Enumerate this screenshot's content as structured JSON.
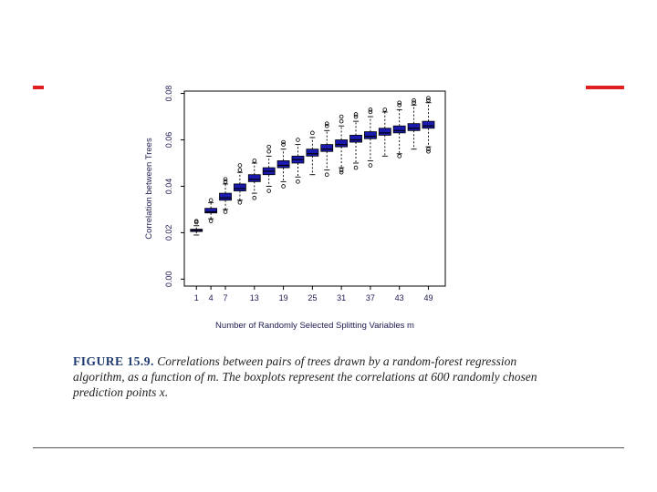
{
  "accent_color": "#e02020",
  "box_color": "#1a1ab0",
  "caption": {
    "figure_label": "FIGURE 15.9.",
    "text": "Correlations between pairs of trees drawn by a random-forest regression algorithm, as a function of m. The boxplots represent the correlations at 600 randomly chosen prediction points x."
  },
  "chart_data": {
    "type": "boxplot",
    "xlabel": "Number of Randomly Selected Splitting Variables m",
    "ylabel": "Correlation between Trees",
    "x_tick_labels": [
      "1",
      "4",
      "7",
      "13",
      "19",
      "25",
      "31",
      "37",
      "43",
      "49"
    ],
    "y_tick_labels": [
      "0.00",
      "0.02",
      "0.04",
      "0.06",
      "0.08"
    ],
    "ylim": [
      -0.003,
      0.081
    ],
    "grid": false,
    "boxes": [
      {
        "m": 1,
        "q1": 0.0205,
        "median": 0.021,
        "q3": 0.0215,
        "whisker_low": 0.019,
        "whisker_high": 0.023,
        "outliers": [
          0.0245,
          0.025
        ]
      },
      {
        "m": 4,
        "q1": 0.0285,
        "median": 0.029,
        "q3": 0.0305,
        "whisker_low": 0.026,
        "whisker_high": 0.033,
        "outliers": [
          0.025,
          0.034
        ]
      },
      {
        "m": 7,
        "q1": 0.034,
        "median": 0.035,
        "q3": 0.037,
        "whisker_low": 0.03,
        "whisker_high": 0.041,
        "outliers": [
          0.029,
          0.042,
          0.043
        ]
      },
      {
        "m": 10,
        "q1": 0.038,
        "median": 0.039,
        "q3": 0.041,
        "whisker_low": 0.034,
        "whisker_high": 0.046,
        "outliers": [
          0.033,
          0.047,
          0.049
        ]
      },
      {
        "m": 13,
        "q1": 0.042,
        "median": 0.043,
        "q3": 0.045,
        "whisker_low": 0.037,
        "whisker_high": 0.05,
        "outliers": [
          0.035,
          0.051
        ]
      },
      {
        "m": 16,
        "q1": 0.045,
        "median": 0.0465,
        "q3": 0.048,
        "whisker_low": 0.04,
        "whisker_high": 0.053,
        "outliers": [
          0.038,
          0.055,
          0.057
        ]
      },
      {
        "m": 19,
        "q1": 0.048,
        "median": 0.049,
        "q3": 0.051,
        "whisker_low": 0.042,
        "whisker_high": 0.056,
        "outliers": [
          0.04,
          0.058,
          0.059
        ]
      },
      {
        "m": 22,
        "q1": 0.05,
        "median": 0.0515,
        "q3": 0.053,
        "whisker_low": 0.044,
        "whisker_high": 0.058,
        "outliers": [
          0.042,
          0.06
        ]
      },
      {
        "m": 25,
        "q1": 0.053,
        "median": 0.054,
        "q3": 0.056,
        "whisker_low": 0.045,
        "whisker_high": 0.061,
        "outliers": [
          0.063
        ]
      },
      {
        "m": 28,
        "q1": 0.055,
        "median": 0.056,
        "q3": 0.058,
        "whisker_low": 0.047,
        "whisker_high": 0.064,
        "outliers": [
          0.045,
          0.066,
          0.067
        ]
      },
      {
        "m": 31,
        "q1": 0.057,
        "median": 0.058,
        "q3": 0.06,
        "whisker_low": 0.048,
        "whisker_high": 0.066,
        "outliers": [
          0.046,
          0.047,
          0.068,
          0.07
        ]
      },
      {
        "m": 34,
        "q1": 0.059,
        "median": 0.06,
        "q3": 0.062,
        "whisker_low": 0.05,
        "whisker_high": 0.068,
        "outliers": [
          0.048,
          0.07,
          0.071
        ]
      },
      {
        "m": 37,
        "q1": 0.0605,
        "median": 0.0615,
        "q3": 0.0635,
        "whisker_low": 0.051,
        "whisker_high": 0.07,
        "outliers": [
          0.049,
          0.072,
          0.073
        ]
      },
      {
        "m": 40,
        "q1": 0.062,
        "median": 0.063,
        "q3": 0.065,
        "whisker_low": 0.053,
        "whisker_high": 0.072,
        "outliers": [
          0.073
        ]
      },
      {
        "m": 43,
        "q1": 0.063,
        "median": 0.064,
        "q3": 0.066,
        "whisker_low": 0.054,
        "whisker_high": 0.073,
        "outliers": [
          0.053,
          0.075,
          0.076
        ]
      },
      {
        "m": 46,
        "q1": 0.064,
        "median": 0.065,
        "q3": 0.067,
        "whisker_low": 0.056,
        "whisker_high": 0.075,
        "outliers": [
          0.076,
          0.077
        ]
      },
      {
        "m": 49,
        "q1": 0.065,
        "median": 0.066,
        "q3": 0.068,
        "whisker_low": 0.057,
        "whisker_high": 0.076,
        "outliers": [
          0.055,
          0.056,
          0.077,
          0.078
        ]
      }
    ]
  }
}
